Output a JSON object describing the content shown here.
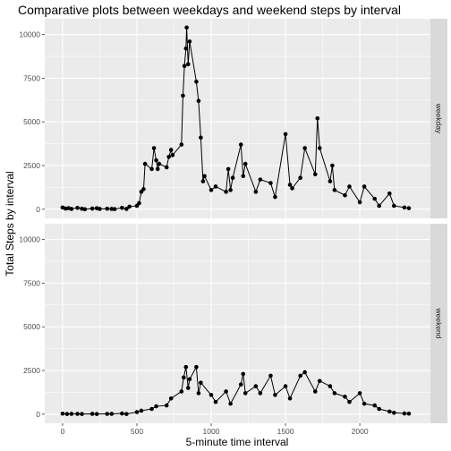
{
  "chart_data": {
    "type": "line",
    "title": "Comparative plots between weekdays and weekend steps by interval",
    "xlabel": "5-minute time interval",
    "ylabel": "Total Steps by interval",
    "xlim": [
      -120,
      2475
    ],
    "ylim": [
      -520,
      10900
    ],
    "x_ticks": [
      0,
      500,
      1000,
      1500,
      2000
    ],
    "y_ticks": [
      0,
      2500,
      5000,
      7500,
      10000
    ],
    "grid": true,
    "markers": true,
    "colors": {
      "panel_bg": "#ebebeb",
      "grid_major": "#ffffff",
      "strip_bg": "#d9d9d9",
      "line": "#000000",
      "point": "#000000"
    },
    "series": [
      {
        "name": "weekday",
        "x": [
          0,
          20,
          40,
          60,
          100,
          130,
          150,
          200,
          230,
          250,
          300,
          330,
          350,
          400,
          430,
          450,
          500,
          515,
          530,
          545,
          555,
          600,
          615,
          630,
          640,
          650,
          700,
          715,
          730,
          740,
          800,
          810,
          820,
          830,
          835,
          845,
          855,
          900,
          915,
          930,
          945,
          955,
          1000,
          1030,
          1100,
          1115,
          1130,
          1145,
          1200,
          1215,
          1230,
          1300,
          1330,
          1400,
          1430,
          1500,
          1530,
          1545,
          1600,
          1630,
          1700,
          1715,
          1730,
          1800,
          1815,
          1830,
          1900,
          1930,
          2000,
          2030,
          2100,
          2130,
          2200,
          2230,
          2300,
          2330
        ],
        "y": [
          100,
          40,
          60,
          20,
          80,
          30,
          0,
          40,
          60,
          20,
          30,
          20,
          10,
          80,
          20,
          150,
          200,
          350,
          1000,
          1150,
          2600,
          2300,
          3500,
          2800,
          2300,
          2600,
          2400,
          3000,
          3400,
          3100,
          3700,
          6500,
          8200,
          9200,
          10400,
          8300,
          9600,
          7300,
          6200,
          4100,
          1600,
          1900,
          1100,
          1300,
          1000,
          2300,
          1100,
          1800,
          3700,
          1900,
          2600,
          1000,
          1700,
          1500,
          700,
          4300,
          1400,
          1200,
          1800,
          3500,
          2000,
          5200,
          3500,
          1600,
          2500,
          1100,
          800,
          1300,
          400,
          1300,
          600,
          200,
          900,
          200,
          100,
          60
        ]
      },
      {
        "name": "weekend",
        "x": [
          0,
          30,
          60,
          100,
          130,
          200,
          230,
          300,
          330,
          400,
          430,
          500,
          530,
          600,
          630,
          700,
          730,
          800,
          815,
          830,
          845,
          855,
          900,
          915,
          930,
          1000,
          1030,
          1100,
          1130,
          1200,
          1215,
          1230,
          1300,
          1330,
          1400,
          1430,
          1500,
          1530,
          1600,
          1630,
          1700,
          1730,
          1800,
          1830,
          1900,
          1930,
          2000,
          2030,
          2100,
          2130,
          2200,
          2230,
          2300,
          2330
        ],
        "y": [
          30,
          10,
          20,
          15,
          10,
          20,
          10,
          15,
          20,
          40,
          10,
          120,
          200,
          300,
          450,
          500,
          900,
          1300,
          2100,
          2700,
          1500,
          2000,
          2700,
          1200,
          1800,
          1100,
          700,
          1300,
          600,
          1700,
          2300,
          1200,
          1600,
          1200,
          2200,
          1100,
          1600,
          900,
          2200,
          2400,
          1300,
          1900,
          1600,
          1200,
          1000,
          700,
          1200,
          600,
          500,
          300,
          150,
          80,
          40,
          30
        ]
      }
    ]
  }
}
